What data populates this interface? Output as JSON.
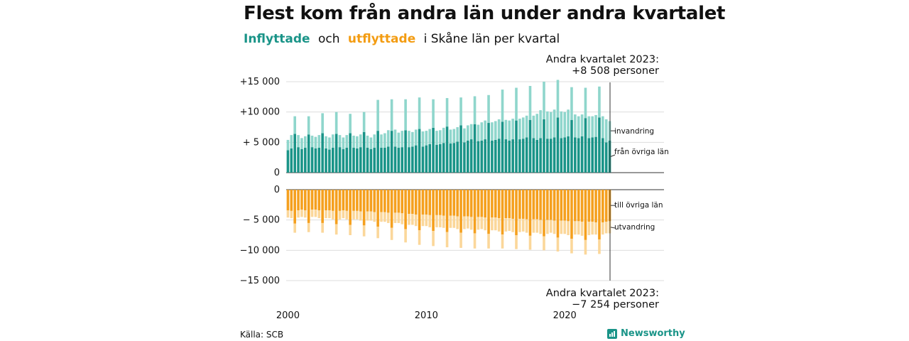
{
  "title": "Flest kom från andra län under andra kvartalet",
  "subtitle": {
    "part1": "Inflyttade",
    "part2": "och",
    "part3": "utflyttade",
    "part4": "i Skåne län per kvartal"
  },
  "callouts": {
    "top_line1": "Andra kvartalet 2023:",
    "top_line2": "+8 508 personer",
    "bottom_line1": "Andra kvartalet 2023:",
    "bottom_line2": "−7 254 personer"
  },
  "source": "Källa: SCB",
  "brand": "Newsworthy",
  "colors": {
    "inflow_dark": "#1a9488",
    "inflow_light": "#8fd6cc",
    "outflow_dark": "#f5a01e",
    "outflow_light": "#fbd79a",
    "grid": "#dddddd"
  },
  "chart_data": [
    {
      "type": "bar",
      "stacked": true,
      "panel": "inflyttade",
      "x_start": "2000 Q1",
      "x_end": "2023 Q2",
      "x_ticks": [
        "2000",
        "2010",
        "2020"
      ],
      "y_ticks": [
        0,
        5000,
        10000,
        15000
      ],
      "y_tick_labels": [
        "0",
        "+ 5 000",
        "+10 000",
        "+15 000"
      ],
      "ylim": [
        0,
        15000
      ],
      "series": [
        {
          "name": "från övriga län",
          "values": [
            3700,
            4000,
            6400,
            4200,
            3900,
            4100,
            6300,
            4200,
            4000,
            4100,
            6500,
            4000,
            3800,
            4100,
            6400,
            4200,
            3900,
            4100,
            6500,
            4100,
            4000,
            4200,
            6700,
            4100,
            3900,
            4100,
            6900,
            4100,
            4100,
            4300,
            6900,
            4300,
            4100,
            4200,
            7000,
            4200,
            4300,
            4500,
            7200,
            4300,
            4500,
            4700,
            7400,
            4600,
            4700,
            4900,
            7600,
            4800,
            4900,
            5100,
            7800,
            5000,
            5300,
            5500,
            8000,
            5200,
            5300,
            5500,
            8200,
            5300,
            5400,
            5600,
            8400,
            5500,
            5300,
            5500,
            8600,
            5500,
            5600,
            5800,
            8700,
            5700,
            5400,
            5700,
            8800,
            5600,
            5600,
            5800,
            9100,
            5700,
            5800,
            6000,
            8700,
            5800,
            5700,
            6000,
            9000,
            5700,
            5800,
            5900,
            9100,
            5700,
            5000,
            5300
          ]
        },
        {
          "name": "invandring",
          "values": [
            1700,
            2200,
            2900,
            2000,
            1800,
            1900,
            3000,
            1900,
            1900,
            2100,
            3300,
            2000,
            2000,
            2200,
            3600,
            2000,
            1900,
            2100,
            3200,
            2000,
            2000,
            2100,
            3300,
            2000,
            1900,
            2200,
            5100,
            2200,
            2400,
            2700,
            5200,
            2800,
            2500,
            2700,
            5100,
            2700,
            2400,
            2600,
            5200,
            2500,
            2400,
            2500,
            4700,
            2300,
            2300,
            2500,
            4700,
            2300,
            2300,
            2400,
            4600,
            2300,
            2500,
            2500,
            4600,
            2700,
            3000,
            3100,
            4600,
            3000,
            3100,
            3200,
            5300,
            3200,
            3300,
            3400,
            5400,
            3400,
            3500,
            3600,
            5600,
            3700,
            4300,
            4600,
            6200,
            4500,
            4400,
            4600,
            6200,
            4400,
            4200,
            4400,
            5400,
            3800,
            3600,
            3600,
            5000,
            3600,
            3500,
            3600,
            5100,
            3600,
            3800,
            3200
          ]
        }
      ]
    },
    {
      "type": "bar",
      "stacked": true,
      "panel": "utflyttade",
      "x_start": "2000 Q1",
      "x_end": "2023 Q2",
      "x_ticks": [
        "2000",
        "2010",
        "2020"
      ],
      "y_ticks": [
        0,
        -5000,
        -10000,
        -15000
      ],
      "y_tick_labels": [
        "0",
        "− 5 000",
        "−10 000",
        "−15 000"
      ],
      "ylim": [
        -15000,
        0
      ],
      "series": [
        {
          "name": "till övriga län",
          "values": [
            -3400,
            -3500,
            -5600,
            -3400,
            -3300,
            -3400,
            -5500,
            -3300,
            -3300,
            -3400,
            -5500,
            -3400,
            -3400,
            -3500,
            -5700,
            -3500,
            -3400,
            -3500,
            -5800,
            -3500,
            -3500,
            -3600,
            -5900,
            -3600,
            -3600,
            -3700,
            -6100,
            -3700,
            -3700,
            -3800,
            -6300,
            -3800,
            -3800,
            -3900,
            -6500,
            -4000,
            -4000,
            -4100,
            -6700,
            -4100,
            -4100,
            -4200,
            -6800,
            -4200,
            -4200,
            -4300,
            -7000,
            -4300,
            -4300,
            -4400,
            -7100,
            -4400,
            -4400,
            -4500,
            -7200,
            -4500,
            -4500,
            -4600,
            -7300,
            -4600,
            -4600,
            -4700,
            -7400,
            -4700,
            -4700,
            -4800,
            -7500,
            -4800,
            -4800,
            -4900,
            -7600,
            -4900,
            -4900,
            -5000,
            -7700,
            -5000,
            -5000,
            -5100,
            -7900,
            -5100,
            -5100,
            -5200,
            -8100,
            -5200,
            -5200,
            -5300,
            -8300,
            -5300,
            -5300,
            -5400,
            -8200,
            -5400,
            -5300,
            -5200
          ]
        },
        {
          "name": "utvandring",
          "values": [
            -1200,
            -1200,
            -1500,
            -1200,
            -1200,
            -1200,
            -1500,
            -1200,
            -1200,
            -1300,
            -1600,
            -1300,
            -1300,
            -1400,
            -1700,
            -1400,
            -1300,
            -1400,
            -1700,
            -1400,
            -1400,
            -1500,
            -1800,
            -1500,
            -1500,
            -1600,
            -1900,
            -1600,
            -1600,
            -1700,
            -2000,
            -1700,
            -1700,
            -1800,
            -2200,
            -1800,
            -1800,
            -1900,
            -2400,
            -1900,
            -1900,
            -2000,
            -2500,
            -2000,
            -2000,
            -2000,
            -2500,
            -2000,
            -2000,
            -2100,
            -2500,
            -2100,
            -2000,
            -2100,
            -2500,
            -2100,
            -2000,
            -2100,
            -2400,
            -2100,
            -2100,
            -2200,
            -2300,
            -2200,
            -2100,
            -2200,
            -2300,
            -2200,
            -2100,
            -2200,
            -2300,
            -2200,
            -2200,
            -2300,
            -2300,
            -2300,
            -2100,
            -2200,
            -2300,
            -2200,
            -2200,
            -2300,
            -2400,
            -2200,
            -2200,
            -2300,
            -2400,
            -2200,
            -2100,
            -2000,
            -2400,
            -2000,
            -1900,
            -2000
          ]
        }
      ]
    }
  ],
  "annotations": {
    "invandring": "invandring",
    "fran_ovriga_lan": "från övriga län",
    "till_ovriga_lan": "till övriga län",
    "utvandring": "utvandring"
  }
}
